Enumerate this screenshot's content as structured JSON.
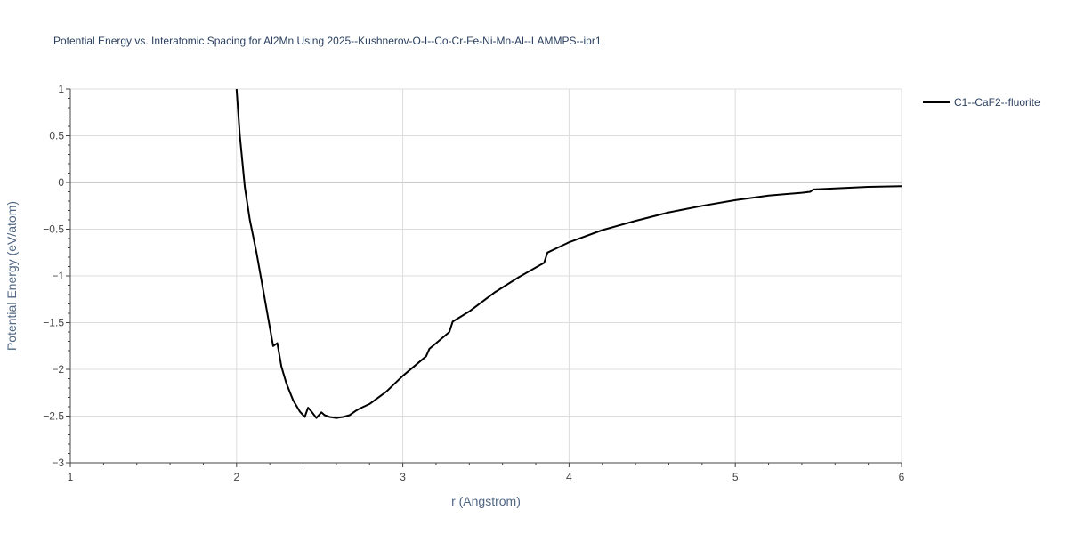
{
  "chart_data": {
    "type": "line",
    "title": "Potential Energy vs. Interatomic Spacing for Al2Mn Using 2025--Kushnerov-O-I--Co-Cr-Fe-Ni-Mn-Al--LAMMPS--ipr1",
    "xlabel": "r (Angstrom)",
    "ylabel": "Potential Energy (eV/atom)",
    "xlim": [
      1,
      6
    ],
    "ylim": [
      -3,
      1
    ],
    "xticks": [
      1,
      2,
      3,
      4,
      5,
      6
    ],
    "yticks": [
      1,
      0.5,
      0,
      -0.5,
      -1,
      -1.5,
      -2,
      -2.5,
      -3
    ],
    "xtick_labels": [
      "1",
      "2",
      "3",
      "4",
      "5",
      "6"
    ],
    "ytick_labels": [
      "1",
      "0.5",
      "0",
      "−0.5",
      "−1",
      "−1.5",
      "−2",
      "−2.5",
      "−3"
    ],
    "grid": true,
    "legend_position": "top-right",
    "series": [
      {
        "name": "C1--CaF2--fluorite",
        "color": "#000000",
        "x": [
          2.0,
          2.02,
          2.05,
          2.08,
          2.12,
          2.16,
          2.19,
          2.22,
          2.245,
          2.27,
          2.3,
          2.34,
          2.38,
          2.41,
          2.43,
          2.45,
          2.48,
          2.51,
          2.53,
          2.56,
          2.6,
          2.64,
          2.68,
          2.72,
          2.74,
          2.8,
          2.9,
          3.0,
          3.08,
          3.14,
          3.16,
          3.2,
          3.28,
          3.3,
          3.4,
          3.55,
          3.7,
          3.85,
          3.87,
          4.0,
          4.2,
          4.4,
          4.6,
          4.8,
          5.0,
          5.2,
          5.4,
          5.45,
          5.47,
          5.6,
          5.8,
          6.0
        ],
        "y": [
          1.0,
          0.5,
          -0.05,
          -0.4,
          -0.75,
          -1.15,
          -1.45,
          -1.75,
          -1.72,
          -1.97,
          -2.15,
          -2.33,
          -2.45,
          -2.51,
          -2.41,
          -2.45,
          -2.52,
          -2.46,
          -2.49,
          -2.51,
          -2.52,
          -2.51,
          -2.49,
          -2.44,
          -2.42,
          -2.37,
          -2.24,
          -2.07,
          -1.95,
          -1.86,
          -1.78,
          -1.72,
          -1.6,
          -1.49,
          -1.38,
          -1.18,
          -1.01,
          -0.86,
          -0.75,
          -0.64,
          -0.51,
          -0.41,
          -0.32,
          -0.25,
          -0.19,
          -0.14,
          -0.11,
          -0.1,
          -0.075,
          -0.065,
          -0.048,
          -0.04
        ]
      }
    ]
  }
}
